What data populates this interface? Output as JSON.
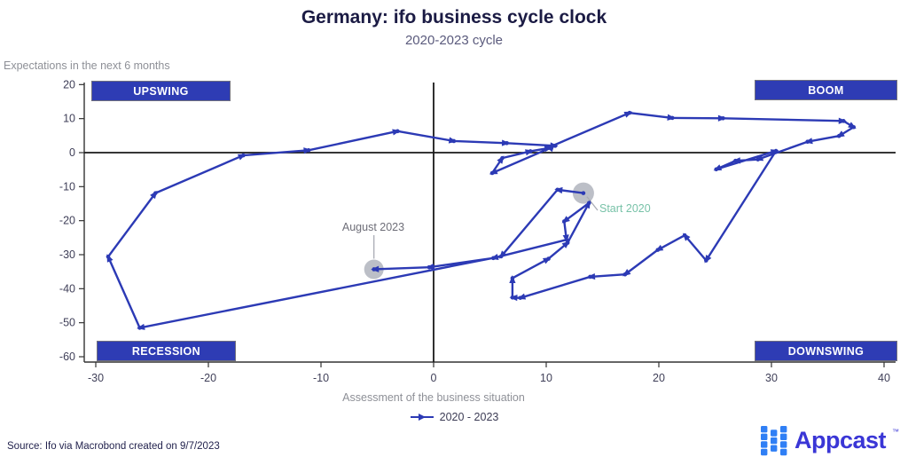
{
  "title": "Germany: ifo business cycle clock",
  "subtitle": "2020-2023 cycle",
  "y_axis_title": "Expectations in the next 6 months",
  "x_axis_title": "Assessment of the business situation",
  "quadrants": {
    "top_left": "UPSWING",
    "top_right": "BOOM",
    "bottom_left": "RECESSION",
    "bottom_right": "DOWNSWING"
  },
  "annotations": {
    "start_label": "Start 2020",
    "end_label": "August 2023"
  },
  "legend": {
    "label": "2020 - 2023"
  },
  "source": "Source: Ifo via Macrobond created on 9/7/2023",
  "logo": {
    "text": "Appcast",
    "tm": "™"
  },
  "colors": {
    "line": "#2c3ab5",
    "quadrant_box": "#2e3cb4",
    "zero_line": "#1a1a1a",
    "axis": "#333333",
    "tick_label": "#3f3f58",
    "start_annotation": "#78c2a8",
    "end_annotation": "#6e6e78",
    "marker_circle": "#8f95a1",
    "leader": "#a9acb4",
    "logo_text": "#3a36d6",
    "logo_squares": "#2f7ff5"
  },
  "chart_data": {
    "type": "line",
    "title": "Germany: ifo business cycle clock",
    "subtitle": "2020-2023 cycle",
    "xlabel": "Assessment of the business situation",
    "ylabel": "Expectations in the next 6 months",
    "xlim": [
      -30,
      40
    ],
    "ylim": [
      -60,
      20
    ],
    "x_ticks": [
      -30,
      -20,
      -10,
      0,
      10,
      20,
      30,
      40
    ],
    "y_ticks": [
      20,
      10,
      0,
      -10,
      -20,
      -30,
      -40,
      -50,
      -60
    ],
    "grid": false,
    "legend_position": "bottom",
    "series": [
      {
        "name": "2020 - 2023",
        "points": [
          [
            13.3,
            -11.9
          ],
          [
            11.0,
            -10.9
          ],
          [
            6.0,
            -30.5
          ],
          [
            -26.1,
            -51.5
          ],
          [
            -28.9,
            -30.6
          ],
          [
            -24.7,
            -11.9
          ],
          [
            -16.9,
            -0.8
          ],
          [
            -11.1,
            0.7
          ],
          [
            -3.2,
            6.3
          ],
          [
            1.8,
            3.4
          ],
          [
            6.5,
            2.8
          ],
          [
            10.8,
            2.0
          ],
          [
            5.2,
            -6.0
          ],
          [
            6.1,
            -1.6
          ],
          [
            8.6,
            0.4
          ],
          [
            10.3,
            1.4
          ],
          [
            10.2,
            1.5
          ],
          [
            17.4,
            11.7
          ],
          [
            21.2,
            10.2
          ],
          [
            25.7,
            10.1
          ],
          [
            36.4,
            9.3
          ],
          [
            37.3,
            7.5
          ],
          [
            36.0,
            4.9
          ],
          [
            33.2,
            3.2
          ],
          [
            28.8,
            -2.0
          ],
          [
            26.8,
            -2.4
          ],
          [
            25.1,
            -4.9
          ],
          [
            30.4,
            0.5
          ],
          [
            24.2,
            -31.7
          ],
          [
            22.3,
            -24.3
          ],
          [
            19.9,
            -28.6
          ],
          [
            17.0,
            -35.8
          ],
          [
            13.9,
            -36.5
          ],
          [
            7.7,
            -42.7
          ],
          [
            7.0,
            -42.6
          ],
          [
            7.0,
            -36.9
          ],
          [
            10.2,
            -31.2
          ],
          [
            11.9,
            -26.5
          ],
          [
            13.8,
            -14.8
          ],
          [
            11.6,
            -20.2
          ],
          [
            11.8,
            -25.6
          ],
          [
            5.3,
            -31.0
          ],
          [
            -0.4,
            -33.7
          ],
          [
            -5.3,
            -34.3
          ]
        ]
      }
    ],
    "highlighted_points": {
      "start": {
        "label": "Start 2020",
        "xy": [
          13.3,
          -11.9
        ]
      },
      "end": {
        "label": "August 2023",
        "xy": [
          -5.3,
          -34.3
        ]
      }
    }
  }
}
